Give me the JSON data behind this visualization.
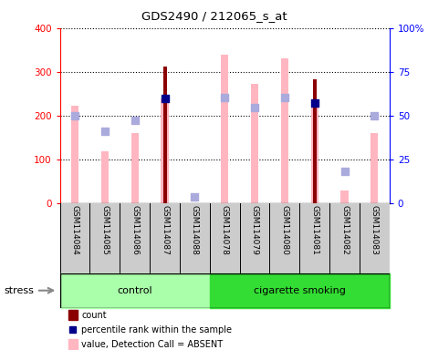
{
  "title": "GDS2490 / 212065_s_at",
  "samples": [
    "GSM114084",
    "GSM114085",
    "GSM114086",
    "GSM114087",
    "GSM114088",
    "GSM114078",
    "GSM114079",
    "GSM114080",
    "GSM114081",
    "GSM114082",
    "GSM114083"
  ],
  "groups": [
    "control",
    "control",
    "control",
    "control",
    "control",
    "cigarette smoking",
    "cigarette smoking",
    "cigarette smoking",
    "cigarette smoking",
    "cigarette smoking",
    "cigarette smoking"
  ],
  "count_values": [
    null,
    null,
    null,
    312,
    null,
    null,
    null,
    null,
    282,
    null,
    null
  ],
  "rank_values": [
    null,
    null,
    null,
    238,
    null,
    null,
    null,
    null,
    228,
    null,
    null
  ],
  "value_absent": [
    222,
    118,
    160,
    238,
    null,
    338,
    272,
    330,
    228,
    28,
    160
  ],
  "rank_absent": [
    200,
    165,
    190,
    null,
    15,
    242,
    218,
    242,
    null,
    72,
    200
  ],
  "ylim_left": [
    0,
    400
  ],
  "ylim_right": [
    0,
    100
  ],
  "yticks_left": [
    0,
    100,
    200,
    300,
    400
  ],
  "yticks_right": [
    0,
    25,
    50,
    75,
    100
  ],
  "ytick_labels_right": [
    "0",
    "25",
    "50",
    "75",
    "100%"
  ],
  "color_count": "#8B0000",
  "color_rank": "#00008B",
  "color_value_absent": "#FFB6C1",
  "color_rank_absent": "#AAAADD",
  "bg_color": "#CCCCCC",
  "group_control_color": "#AAFFAA",
  "group_smoking_color": "#33DD33",
  "n_control": 5,
  "n_smoking": 6
}
